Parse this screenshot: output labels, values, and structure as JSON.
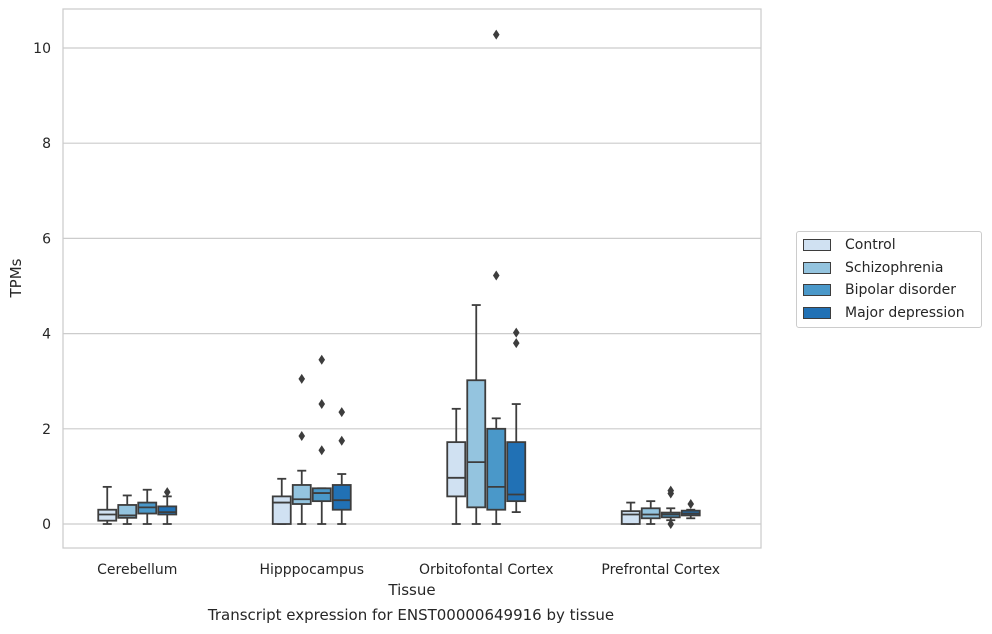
{
  "chart_data": {
    "type": "box",
    "title": "",
    "caption": "Transcript expression for ENST00000649916 by tissue",
    "xlabel": "Tissue",
    "ylabel": "TPMs",
    "ylim": [
      -0.5,
      10.8
    ],
    "yticks": [
      0,
      2,
      4,
      6,
      8,
      10
    ],
    "grid": "horizontal",
    "legend_position": "right",
    "categories": [
      "Cerebellum",
      "Hipppocampus",
      "Orbitofontal Cortex",
      "Prefrontal Cortex"
    ],
    "series": [
      {
        "name": "Control",
        "color": "#d0e1f2",
        "boxes": [
          {
            "whislo": 0.0,
            "q1": 0.07,
            "med": 0.2,
            "q3": 0.3,
            "whishi": 0.78,
            "fliers": []
          },
          {
            "whislo": 0.0,
            "q1": 0.0,
            "med": 0.45,
            "q3": 0.58,
            "whishi": 0.95,
            "fliers": []
          },
          {
            "whislo": 0.0,
            "q1": 0.58,
            "med": 0.97,
            "q3": 1.72,
            "whishi": 2.42,
            "fliers": []
          },
          {
            "whislo": 0.0,
            "q1": 0.0,
            "med": 0.2,
            "q3": 0.27,
            "whishi": 0.45,
            "fliers": []
          }
        ]
      },
      {
        "name": "Schizophrenia",
        "color": "#94c4df",
        "boxes": [
          {
            "whislo": 0.0,
            "q1": 0.13,
            "med": 0.18,
            "q3": 0.4,
            "whishi": 0.6,
            "fliers": []
          },
          {
            "whislo": 0.0,
            "q1": 0.42,
            "med": 0.52,
            "q3": 0.82,
            "whishi": 1.12,
            "fliers": [
              1.85,
              3.05
            ]
          },
          {
            "whislo": 0.0,
            "q1": 0.35,
            "med": 1.3,
            "q3": 3.02,
            "whishi": 4.6,
            "fliers": []
          },
          {
            "whislo": 0.0,
            "q1": 0.12,
            "med": 0.2,
            "q3": 0.33,
            "whishi": 0.48,
            "fliers": []
          }
        ]
      },
      {
        "name": "Bipolar disorder",
        "color": "#4a98c9",
        "boxes": [
          {
            "whislo": 0.0,
            "q1": 0.22,
            "med": 0.35,
            "q3": 0.45,
            "whishi": 0.72,
            "fliers": []
          },
          {
            "whislo": 0.0,
            "q1": 0.48,
            "med": 0.65,
            "q3": 0.75,
            "whishi": 0.75,
            "fliers": [
              1.55,
              2.52,
              3.45
            ]
          },
          {
            "whislo": 0.0,
            "q1": 0.3,
            "med": 0.78,
            "q3": 2.0,
            "whishi": 2.22,
            "fliers": [
              5.22,
              10.28
            ]
          },
          {
            "whislo": 0.08,
            "q1": 0.14,
            "med": 0.2,
            "q3": 0.24,
            "whishi": 0.33,
            "fliers": [
              0.0,
              0.64,
              0.7
            ]
          }
        ]
      },
      {
        "name": "Major depression",
        "color": "#2171b5",
        "boxes": [
          {
            "whislo": 0.0,
            "q1": 0.2,
            "med": 0.25,
            "q3": 0.37,
            "whishi": 0.58,
            "fliers": [
              0.67
            ]
          },
          {
            "whislo": 0.0,
            "q1": 0.3,
            "med": 0.5,
            "q3": 0.82,
            "whishi": 1.05,
            "fliers": [
              1.75,
              2.35
            ]
          },
          {
            "whislo": 0.25,
            "q1": 0.48,
            "med": 0.62,
            "q3": 1.72,
            "whishi": 2.52,
            "fliers": [
              3.8,
              4.02
            ]
          },
          {
            "whislo": 0.12,
            "q1": 0.18,
            "med": 0.22,
            "q3": 0.28,
            "whishi": 0.3,
            "fliers": [
              0.42
            ]
          }
        ]
      }
    ]
  }
}
